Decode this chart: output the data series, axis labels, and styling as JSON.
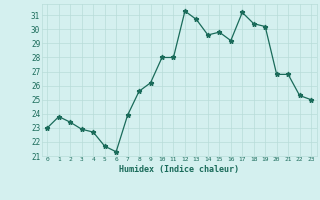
{
  "x": [
    0,
    1,
    2,
    3,
    4,
    5,
    6,
    7,
    8,
    9,
    10,
    11,
    12,
    13,
    14,
    15,
    16,
    17,
    18,
    19,
    20,
    21,
    22,
    23
  ],
  "y": [
    23.0,
    23.8,
    23.4,
    22.9,
    22.7,
    21.7,
    21.3,
    23.9,
    25.6,
    26.2,
    28.0,
    28.0,
    31.3,
    30.7,
    29.6,
    29.8,
    29.2,
    31.2,
    30.4,
    30.2,
    26.8,
    26.8,
    25.3,
    25.0
  ],
  "xlabel": "Humidex (Indice chaleur)",
  "ylim": [
    21,
    31.8
  ],
  "xlim": [
    -0.5,
    23.5
  ],
  "yticks": [
    21,
    22,
    23,
    24,
    25,
    26,
    27,
    28,
    29,
    30,
    31
  ],
  "xticks": [
    0,
    1,
    2,
    3,
    4,
    5,
    6,
    7,
    8,
    9,
    10,
    11,
    12,
    13,
    14,
    15,
    16,
    17,
    18,
    19,
    20,
    21,
    22,
    23
  ],
  "line_color": "#1a6b5a",
  "marker_color": "#1a6b5a",
  "bg_color": "#d4f0ef",
  "grid_color": "#b8dcd9",
  "xlabel_color": "#1a6b5a",
  "tick_color": "#1a6b5a"
}
